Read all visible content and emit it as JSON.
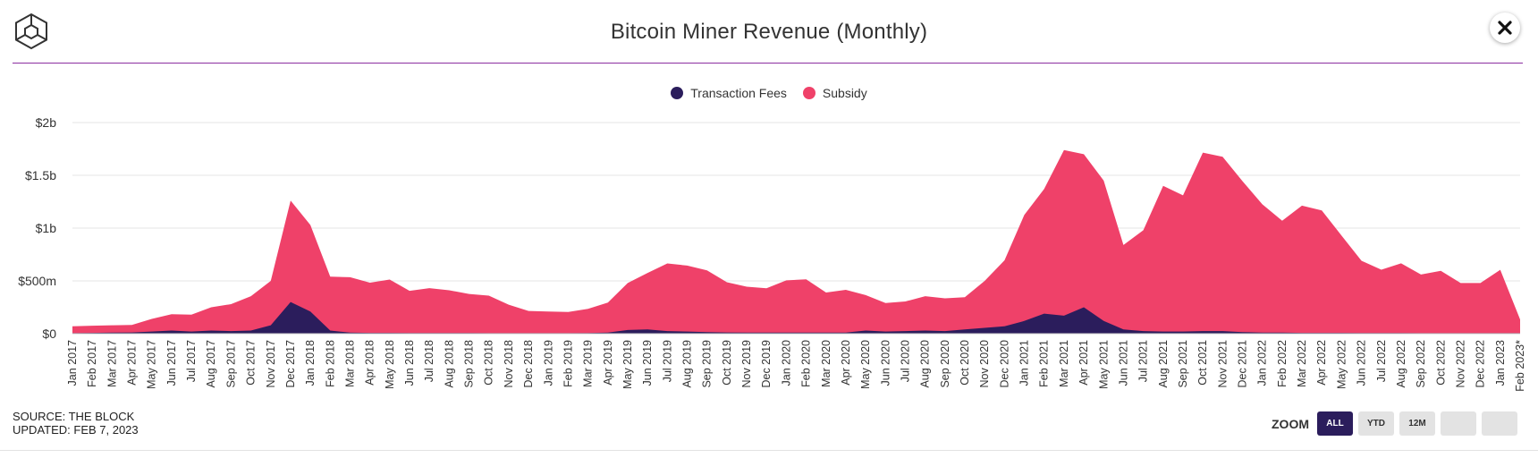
{
  "header": {
    "title": "Bitcoin Miner Revenue (Monthly)"
  },
  "footer": {
    "source": "SOURCE: THE BLOCK",
    "updated": "UPDATED: FEB 7, 2023"
  },
  "zoom": {
    "label": "ZOOM",
    "buttons": [
      "ALL",
      "YTD",
      "12M",
      "",
      ""
    ],
    "active": "ALL"
  },
  "colors": {
    "fees": "#2b1d5c",
    "subsidy": "#ef4169",
    "grid": "#e6e6e6",
    "rule": "#8b2fa0",
    "zoom_active": "#2b1d5c"
  },
  "chart_data": {
    "type": "area",
    "stacked": true,
    "title": "Bitcoin Miner Revenue (Monthly)",
    "xlabel": "",
    "ylabel": "",
    "ylim": [
      0,
      2000
    ],
    "y_unit": "millions USD",
    "yticks": [
      0,
      500,
      1000,
      1500,
      2000
    ],
    "ytick_labels": [
      "$0",
      "$500m",
      "$1b",
      "$1.5b",
      "$2b"
    ],
    "legend_position": "top-center",
    "grid": true,
    "categories": [
      "Jan 2017",
      "Feb 2017",
      "Mar 2017",
      "Apr 2017",
      "May 2017",
      "Jun 2017",
      "Jul 2017",
      "Aug 2017",
      "Sep 2017",
      "Oct 2017",
      "Nov 2017",
      "Dec 2017",
      "Jan 2018",
      "Feb 2018",
      "Mar 2018",
      "Apr 2018",
      "May 2018",
      "Jun 2018",
      "Jul 2018",
      "Aug 2018",
      "Sep 2018",
      "Oct 2018",
      "Nov 2018",
      "Dec 2018",
      "Jan 2019",
      "Feb 2019",
      "Mar 2019",
      "Apr 2019",
      "May 2019",
      "Jun 2019",
      "Jul 2019",
      "Aug 2019",
      "Sep 2019",
      "Oct 2019",
      "Nov 2019",
      "Dec 2019",
      "Jan 2020",
      "Feb 2020",
      "Mar 2020",
      "Apr 2020",
      "May 2020",
      "Jun 2020",
      "Jul 2020",
      "Aug 2020",
      "Sep 2020",
      "Oct 2020",
      "Nov 2020",
      "Dec 2020",
      "Jan 2021",
      "Feb 2021",
      "Mar 2021",
      "Apr 2021",
      "May 2021",
      "Jun 2021",
      "Jul 2021",
      "Aug 2021",
      "Sep 2021",
      "Oct 2021",
      "Nov 2021",
      "Dec 2021",
      "Jan 2022",
      "Feb 2022",
      "Mar 2022",
      "Apr 2022",
      "May 2022",
      "Jun 2022",
      "Jul 2022",
      "Aug 2022",
      "Sep 2022",
      "Oct 2022",
      "Nov 2022",
      "Dec 2022",
      "Jan 2023",
      "Feb 2023*"
    ],
    "series": [
      {
        "name": "Transaction Fees",
        "color": "#2b1d5c",
        "values": [
          5,
          8,
          10,
          12,
          20,
          30,
          20,
          30,
          25,
          30,
          80,
          300,
          210,
          30,
          10,
          8,
          8,
          6,
          6,
          6,
          6,
          5,
          5,
          5,
          5,
          5,
          6,
          10,
          35,
          40,
          25,
          20,
          15,
          12,
          10,
          10,
          10,
          10,
          10,
          10,
          30,
          20,
          25,
          30,
          25,
          40,
          55,
          70,
          120,
          190,
          170,
          250,
          120,
          40,
          25,
          20,
          20,
          25,
          25,
          15,
          10,
          10,
          8,
          8,
          8,
          6,
          6,
          6,
          5,
          5,
          5,
          5,
          5,
          5
        ]
      },
      {
        "name": "Subsidy",
        "color": "#ef4169",
        "values": [
          65,
          67,
          70,
          70,
          120,
          155,
          160,
          220,
          255,
          325,
          420,
          960,
          820,
          510,
          525,
          475,
          505,
          400,
          425,
          405,
          370,
          355,
          270,
          210,
          205,
          200,
          230,
          285,
          445,
          535,
          640,
          625,
          585,
          475,
          435,
          420,
          495,
          505,
          380,
          405,
          335,
          270,
          280,
          325,
          310,
          305,
          445,
          625,
          1005,
          1180,
          1570,
          1450,
          1330,
          800,
          955,
          1380,
          1290,
          1690,
          1650,
          1430,
          1215,
          1060,
          1205,
          1160,
          920,
          685,
          600,
          660,
          555,
          590,
          475,
          475,
          600,
          130
        ]
      }
    ]
  }
}
